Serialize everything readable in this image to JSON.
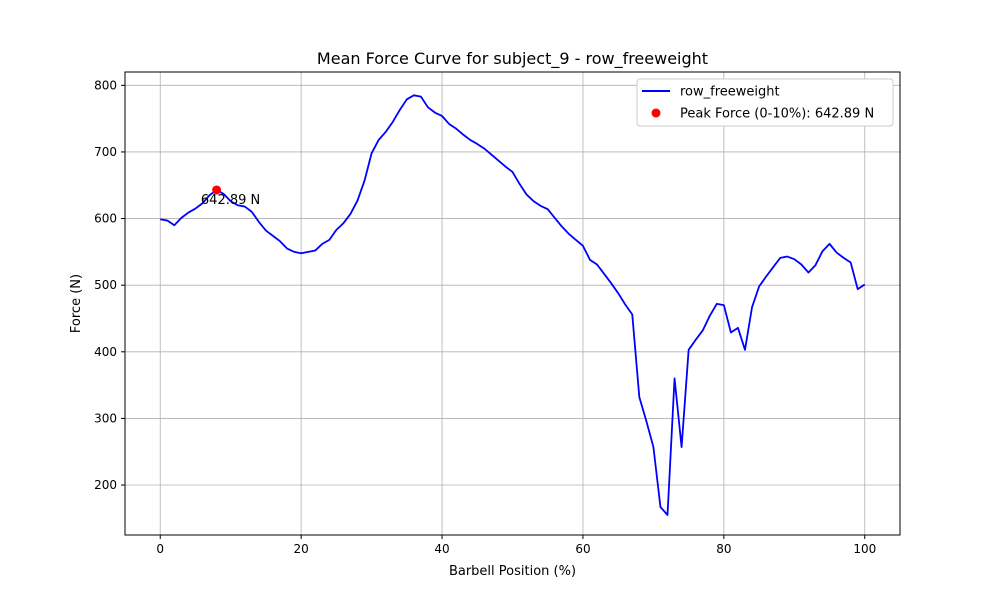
{
  "chart_data": {
    "type": "line",
    "title": "Mean Force Curve for subject_9 - row_freeweight",
    "xlabel": "Barbell Position (%)",
    "ylabel": "Force (N)",
    "xlim": [
      -5,
      105
    ],
    "ylim": [
      125,
      820
    ],
    "xticks": [
      0,
      20,
      40,
      60,
      80,
      100
    ],
    "yticks": [
      200,
      300,
      400,
      500,
      600,
      700,
      800
    ],
    "grid": true,
    "legend_position": "top-right",
    "series": [
      {
        "name": "row_freeweight",
        "color": "#0000ff",
        "x": [
          0,
          1,
          2,
          3,
          4,
          5,
          6,
          7,
          8,
          9,
          10,
          11,
          12,
          13,
          14,
          15,
          16,
          17,
          18,
          19,
          20,
          21,
          22,
          23,
          24,
          25,
          26,
          27,
          28,
          29,
          30,
          31,
          32,
          33,
          34,
          35,
          36,
          37,
          38,
          39,
          40,
          41,
          42,
          43,
          44,
          45,
          46,
          47,
          48,
          49,
          50,
          51,
          52,
          53,
          54,
          55,
          56,
          57,
          58,
          59,
          60,
          61,
          62,
          63,
          64,
          65,
          66,
          67,
          68,
          69,
          70,
          71,
          72,
          73,
          74,
          75,
          76,
          77,
          78,
          79,
          80,
          81,
          82,
          83,
          84,
          85,
          86,
          87,
          88,
          89,
          90,
          91,
          92,
          93,
          94,
          95,
          96,
          97,
          98,
          99,
          100
        ],
        "y": [
          599,
          597,
          590,
          601,
          609,
          615,
          623,
          635,
          643,
          637,
          626,
          620,
          618,
          610,
          595,
          582,
          574,
          566,
          555,
          550,
          548,
          550,
          552,
          562,
          568,
          583,
          593,
          607,
          627,
          657,
          698,
          718,
          730,
          745,
          763,
          779,
          785,
          783,
          767,
          759,
          754,
          742,
          735,
          726,
          718,
          712,
          705,
          696,
          687,
          678,
          670,
          652,
          636,
          626,
          619,
          614,
          601,
          588,
          577,
          568,
          559,
          538,
          531,
          517,
          503,
          488,
          471,
          456,
          332,
          296,
          257,
          167,
          155,
          360,
          257,
          403,
          418,
          432,
          454,
          472,
          470,
          429,
          436,
          403,
          467,
          498,
          513,
          527,
          541,
          543,
          539,
          531,
          519,
          530,
          551,
          562,
          549,
          541,
          534,
          494,
          501
        ]
      }
    ],
    "peak": {
      "legend_label": "Peak Force (0-10%): 642.89 N",
      "annotation": "642.89 N",
      "x": 8,
      "y": 642.89,
      "color": "#ff0000"
    }
  }
}
